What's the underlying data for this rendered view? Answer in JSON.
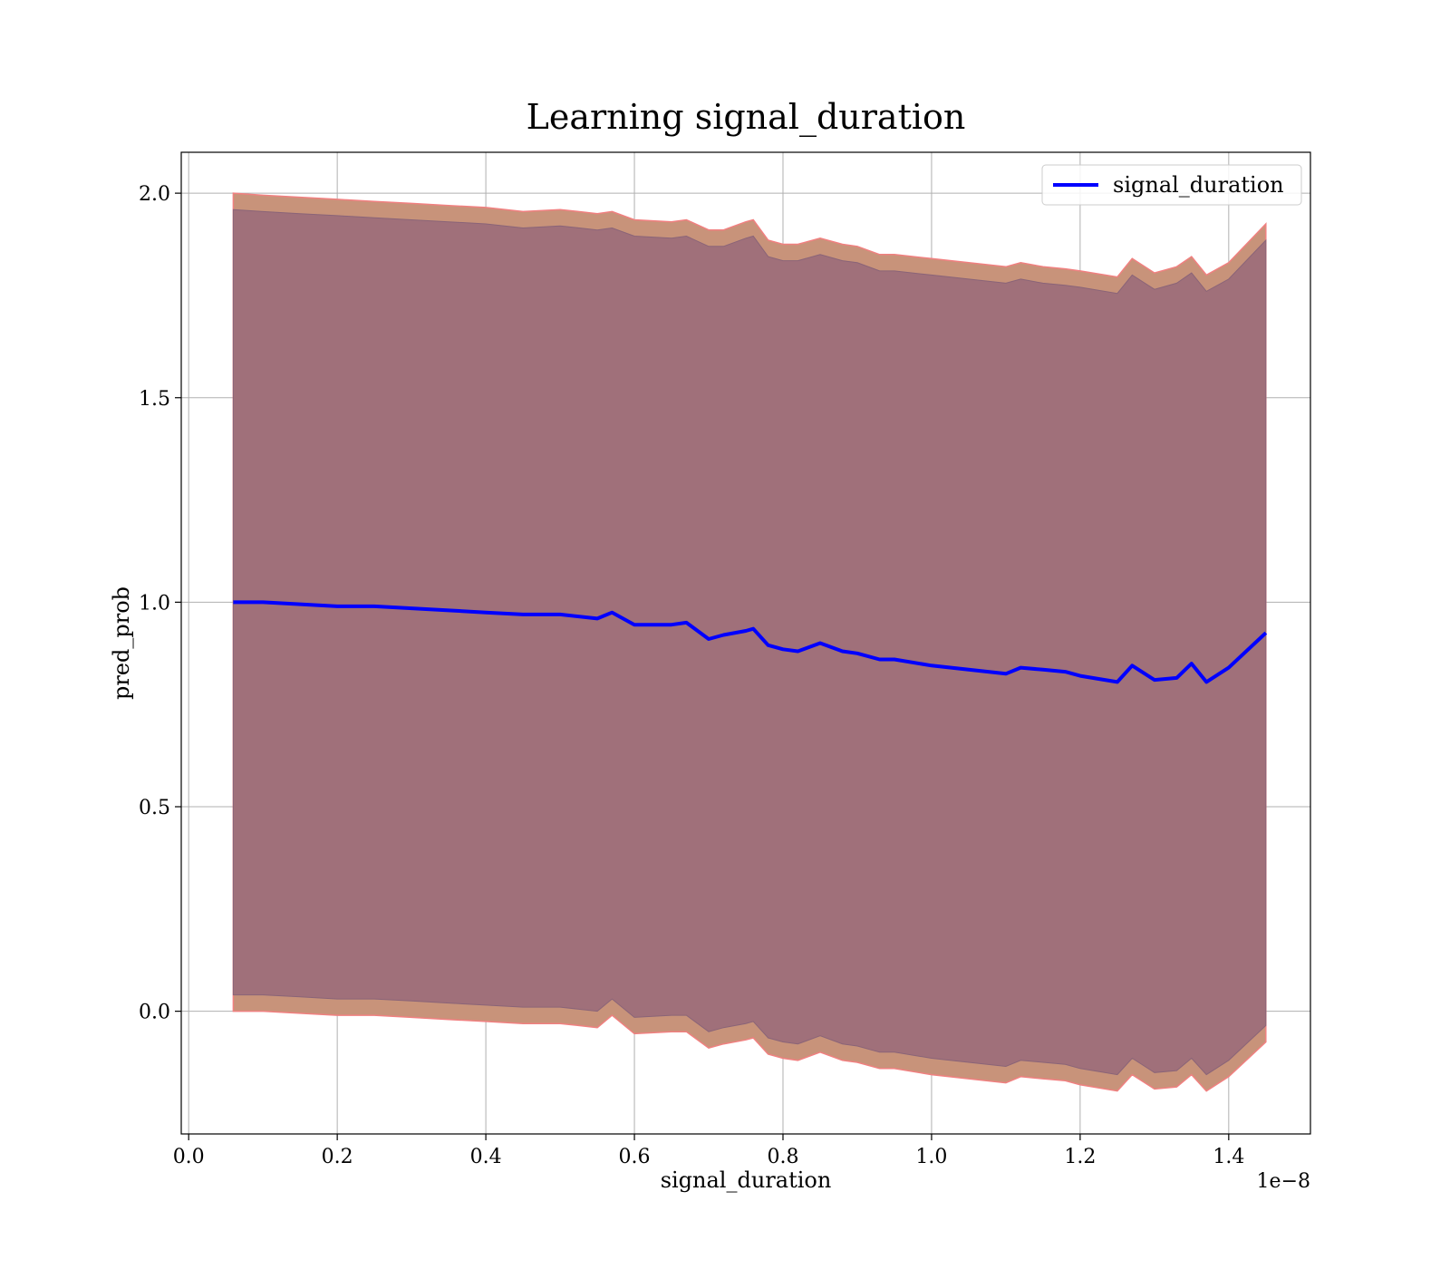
{
  "chart_data": {
    "type": "line",
    "title": "Learning signal_duration",
    "xlabel": "signal_duration",
    "ylabel": "pred_prob",
    "x_offset_text": "1e−8",
    "xlim": [
      -0.01,
      1.51
    ],
    "ylim": [
      -0.3,
      2.1
    ],
    "x_ticks": [
      0.0,
      0.2,
      0.4,
      0.6,
      0.8,
      1.0,
      1.2,
      1.4
    ],
    "x_tick_labels": [
      "0.0",
      "0.2",
      "0.4",
      "0.6",
      "0.8",
      "1.0",
      "1.2",
      "1.4"
    ],
    "y_ticks": [
      0.0,
      0.5,
      1.0,
      1.5,
      2.0
    ],
    "y_tick_labels": [
      "0.0",
      "0.5",
      "1.0",
      "1.5",
      "2.0"
    ],
    "grid": true,
    "legend_position": "top-right",
    "colors": {
      "line": "#0000ff",
      "band_outer": "#c8937a",
      "band_outer_edge": "#f08080",
      "band_inner": "#a0707a",
      "grid": "#b0b0b0"
    },
    "series": [
      {
        "name": "signal_duration",
        "x": [
          0.06,
          0.1,
          0.15,
          0.2,
          0.25,
          0.3,
          0.35,
          0.4,
          0.45,
          0.5,
          0.55,
          0.57,
          0.6,
          0.65,
          0.67,
          0.7,
          0.72,
          0.75,
          0.76,
          0.78,
          0.8,
          0.82,
          0.85,
          0.88,
          0.9,
          0.93,
          0.95,
          1.0,
          1.05,
          1.1,
          1.12,
          1.15,
          1.18,
          1.2,
          1.25,
          1.27,
          1.3,
          1.33,
          1.35,
          1.37,
          1.4,
          1.45
        ],
        "y": [
          1.0,
          1.0,
          0.995,
          0.99,
          0.99,
          0.985,
          0.98,
          0.975,
          0.97,
          0.97,
          0.96,
          0.975,
          0.945,
          0.945,
          0.95,
          0.91,
          0.92,
          0.93,
          0.935,
          0.895,
          0.885,
          0.88,
          0.9,
          0.88,
          0.875,
          0.86,
          0.86,
          0.845,
          0.835,
          0.825,
          0.84,
          0.835,
          0.83,
          0.82,
          0.805,
          0.845,
          0.81,
          0.815,
          0.85,
          0.805,
          0.84,
          0.925
        ],
        "band_outer_upper": [
          2.0,
          1.995,
          1.99,
          1.985,
          1.98,
          1.975,
          1.97,
          1.965,
          1.955,
          1.96,
          1.95,
          1.955,
          1.935,
          1.93,
          1.935,
          1.91,
          1.91,
          1.93,
          1.935,
          1.885,
          1.875,
          1.875,
          1.89,
          1.875,
          1.87,
          1.85,
          1.85,
          1.84,
          1.83,
          1.82,
          1.83,
          1.82,
          1.815,
          1.81,
          1.795,
          1.84,
          1.805,
          1.82,
          1.845,
          1.8,
          1.83,
          1.925
        ],
        "band_outer_lower": [
          0.0,
          0.0,
          -0.005,
          -0.01,
          -0.01,
          -0.015,
          -0.02,
          -0.025,
          -0.03,
          -0.03,
          -0.04,
          -0.01,
          -0.055,
          -0.05,
          -0.05,
          -0.09,
          -0.08,
          -0.07,
          -0.065,
          -0.105,
          -0.115,
          -0.12,
          -0.1,
          -0.12,
          -0.125,
          -0.14,
          -0.14,
          -0.155,
          -0.165,
          -0.175,
          -0.16,
          -0.165,
          -0.17,
          -0.18,
          -0.195,
          -0.155,
          -0.19,
          -0.185,
          -0.155,
          -0.195,
          -0.16,
          -0.075
        ],
        "band_inner_upper": [
          1.96,
          1.955,
          1.95,
          1.945,
          1.94,
          1.935,
          1.93,
          1.925,
          1.915,
          1.92,
          1.91,
          1.915,
          1.895,
          1.89,
          1.895,
          1.87,
          1.87,
          1.89,
          1.895,
          1.845,
          1.835,
          1.835,
          1.85,
          1.835,
          1.83,
          1.81,
          1.81,
          1.8,
          1.79,
          1.78,
          1.79,
          1.78,
          1.775,
          1.77,
          1.755,
          1.8,
          1.765,
          1.78,
          1.805,
          1.76,
          1.79,
          1.885
        ],
        "band_inner_lower": [
          0.04,
          0.04,
          0.035,
          0.03,
          0.03,
          0.025,
          0.02,
          0.015,
          0.01,
          0.01,
          0.0,
          0.03,
          -0.015,
          -0.01,
          -0.01,
          -0.05,
          -0.04,
          -0.03,
          -0.025,
          -0.065,
          -0.075,
          -0.08,
          -0.06,
          -0.08,
          -0.085,
          -0.1,
          -0.1,
          -0.115,
          -0.125,
          -0.135,
          -0.12,
          -0.125,
          -0.13,
          -0.14,
          -0.155,
          -0.115,
          -0.15,
          -0.145,
          -0.115,
          -0.155,
          -0.12,
          -0.035
        ]
      }
    ]
  }
}
